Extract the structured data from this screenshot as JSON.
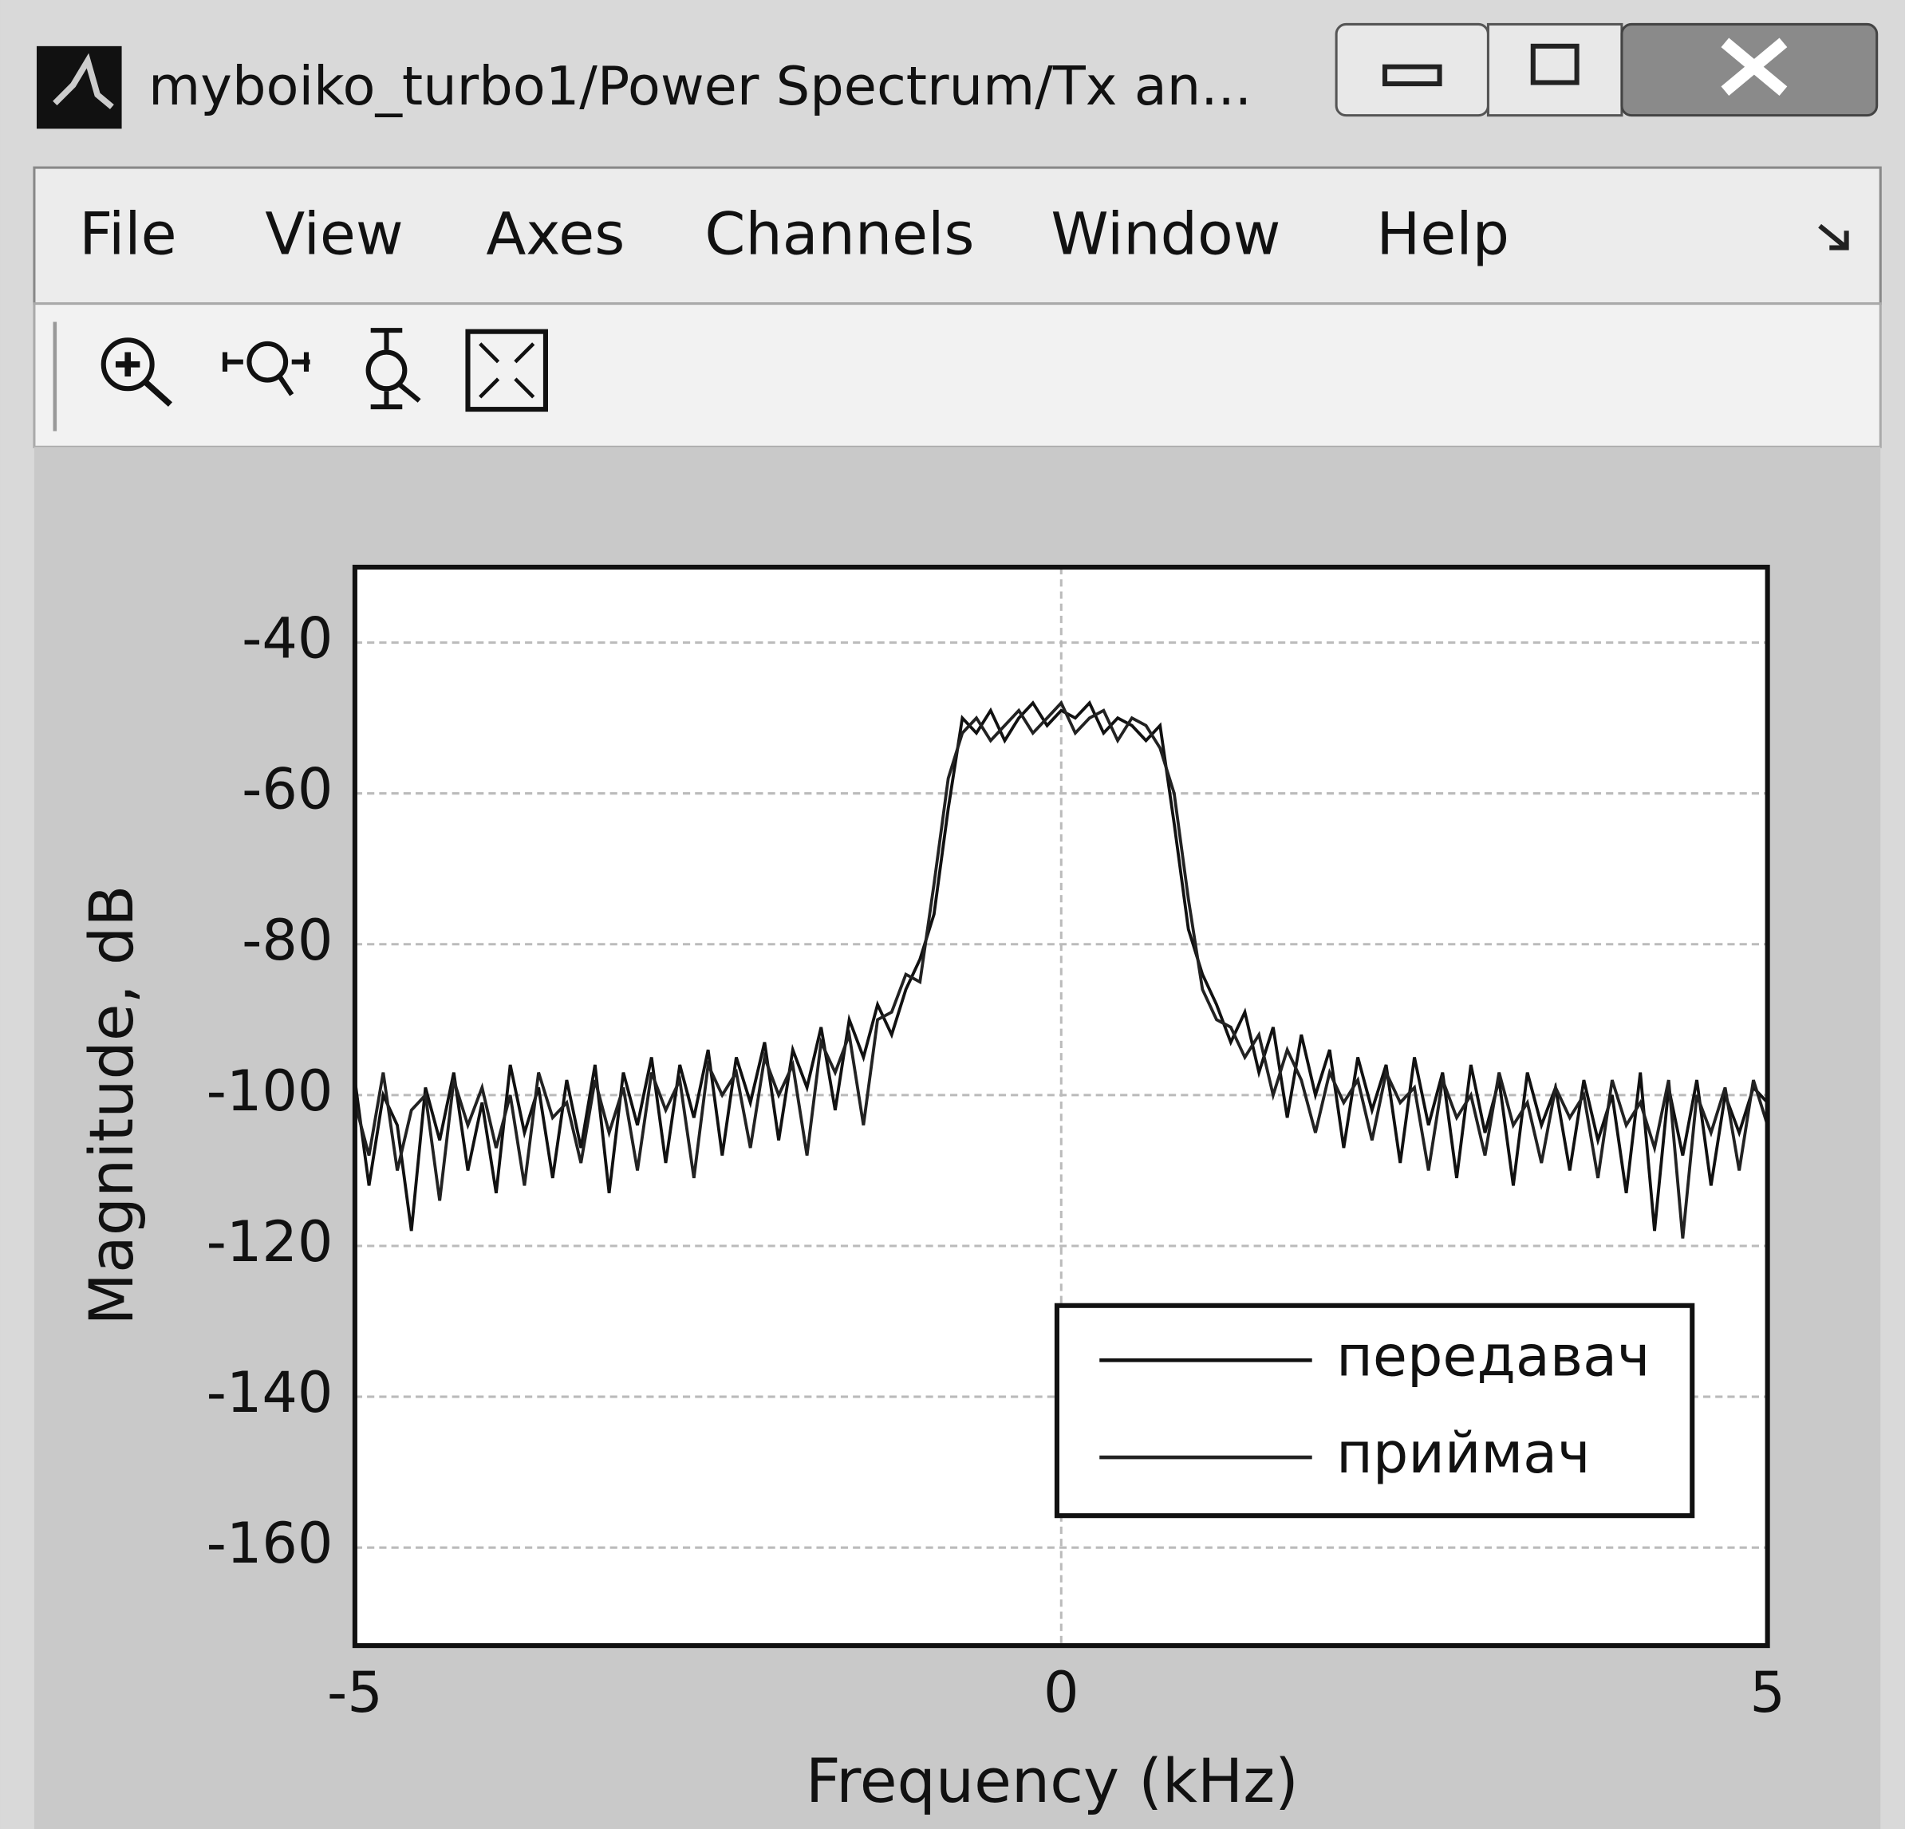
{
  "window": {
    "title": "myboiko_turbo1/Power Spectrum/Tx an..."
  },
  "menu": [
    "File",
    "View",
    "Axes",
    "Channels",
    "Window",
    "Help"
  ],
  "chart_data": {
    "type": "line",
    "xlabel": "Frequency (kHz)",
    "ylabel": "Magnitude, dB",
    "x": [
      -5,
      -4.9,
      -4.8,
      -4.7,
      -4.6,
      -4.5,
      -4.4,
      -4.3,
      -4.2,
      -4.1,
      -4,
      -3.9,
      -3.8,
      -3.7,
      -3.6,
      -3.5,
      -3.4,
      -3.3,
      -3.2,
      -3.1,
      -3,
      -2.9,
      -2.8,
      -2.7,
      -2.6,
      -2.5,
      -2.4,
      -2.3,
      -2.2,
      -2.1,
      -2,
      -1.9,
      -1.8,
      -1.7,
      -1.6,
      -1.5,
      -1.4,
      -1.3,
      -1.2,
      -1.1,
      -1,
      -0.9,
      -0.8,
      -0.7,
      -0.6,
      -0.5,
      -0.4,
      -0.3,
      -0.2,
      -0.1,
      0,
      0.1,
      0.2,
      0.3,
      0.4,
      0.5,
      0.6,
      0.7,
      0.8,
      0.9,
      1,
      1.1,
      1.2,
      1.3,
      1.4,
      1.5,
      1.6,
      1.7,
      1.8,
      1.9,
      2,
      2.1,
      2.2,
      2.3,
      2.4,
      2.5,
      2.6,
      2.7,
      2.8,
      2.9,
      3,
      3.1,
      3.2,
      3.3,
      3.4,
      3.5,
      3.6,
      3.7,
      3.8,
      3.9,
      4,
      4.1,
      4.2,
      4.3,
      4.4,
      4.5,
      4.6,
      4.7,
      4.8,
      4.9,
      5
    ],
    "series": [
      {
        "name": "передавач",
        "color": "#111111",
        "values": [
          -98,
          -112,
          -100,
          -104,
          -118,
          -99,
          -106,
          -97,
          -110,
          -101,
          -113,
          -96,
          -105,
          -99,
          -111,
          -98,
          -107,
          -96,
          -113,
          -97,
          -104,
          -95,
          -109,
          -96,
          -103,
          -94,
          -108,
          -95,
          -101,
          -93,
          -106,
          -94,
          -99,
          -91,
          -102,
          -90,
          -95,
          -88,
          -92,
          -86,
          -82,
          -76,
          -62,
          -50,
          -52,
          -49,
          -53,
          -50,
          -48,
          -51,
          -49,
          -50,
          -48,
          -52,
          -50,
          -51,
          -53,
          -51,
          -64,
          -78,
          -84,
          -88,
          -93,
          -89,
          -97,
          -91,
          -103,
          -92,
          -100,
          -94,
          -107,
          -95,
          -102,
          -96,
          -109,
          -95,
          -104,
          -97,
          -111,
          -96,
          -105,
          -98,
          -112,
          -97,
          -104,
          -99,
          -110,
          -98,
          -106,
          -100,
          -113,
          -97,
          -118,
          -99,
          -108,
          -98,
          -112,
          -100,
          -105,
          -99,
          -101
        ]
      },
      {
        "name": "приймач",
        "color": "#222222",
        "values": [
          -101,
          -108,
          -97,
          -110,
          -102,
          -100,
          -114,
          -98,
          -104,
          -99,
          -107,
          -100,
          -112,
          -97,
          -103,
          -101,
          -109,
          -98,
          -105,
          -99,
          -110,
          -97,
          -102,
          -98,
          -111,
          -96,
          -100,
          -97,
          -107,
          -95,
          -100,
          -96,
          -108,
          -93,
          -97,
          -92,
          -104,
          -90,
          -89,
          -84,
          -85,
          -72,
          -58,
          -52,
          -50,
          -53,
          -51,
          -49,
          -52,
          -50,
          -48,
          -52,
          -50,
          -49,
          -53,
          -50,
          -51,
          -54,
          -60,
          -74,
          -86,
          -90,
          -91,
          -95,
          -92,
          -100,
          -94,
          -98,
          -105,
          -97,
          -101,
          -98,
          -106,
          -97,
          -101,
          -99,
          -110,
          -98,
          -103,
          -100,
          -108,
          -97,
          -104,
          -101,
          -109,
          -99,
          -103,
          -100,
          -111,
          -98,
          -104,
          -101,
          -107,
          -98,
          -119,
          -100,
          -105,
          -99,
          -110,
          -98,
          -104
        ]
      }
    ],
    "xlim": [
      -5,
      5
    ],
    "xticks": [
      -5,
      0,
      5
    ],
    "ylim": [
      -173,
      -30
    ],
    "yticks": [
      -40,
      -60,
      -80,
      -100,
      -120,
      -140,
      -160
    ],
    "grid": true,
    "legend": "lower right"
  }
}
